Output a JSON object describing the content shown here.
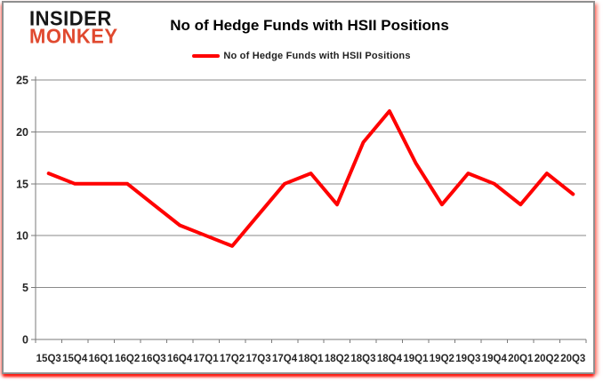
{
  "logo": {
    "line1": "INSIDER",
    "line2": "MONKEY"
  },
  "header": {
    "title": "No of Hedge Funds with HSII Positions"
  },
  "legend": {
    "label": "No of Hedge Funds with HSII Positions"
  },
  "colors": {
    "line": "#ff0000",
    "logo_red": "#e0492f",
    "grid": "#8a8a8a",
    "axis": "#7a7a7a",
    "text": "#262626",
    "frame_border": "#8f8f8f",
    "glow": "#ff1500"
  },
  "chart_data": {
    "type": "line",
    "title": "No of Hedge Funds with HSII Positions",
    "legend_entries": [
      "No of Hedge Funds with HSII Positions"
    ],
    "legend_position": "top",
    "grid": true,
    "xlabel": "",
    "ylabel": "",
    "ylim": [
      0,
      25
    ],
    "yticks": [
      0,
      5,
      10,
      15,
      20,
      25
    ],
    "categories": [
      "15Q3",
      "15Q4",
      "16Q1",
      "16Q2",
      "16Q3",
      "16Q4",
      "17Q1",
      "17Q2",
      "17Q3",
      "17Q4",
      "18Q1",
      "18Q2",
      "18Q3",
      "18Q4",
      "19Q1",
      "19Q2",
      "19Q3",
      "19Q4",
      "20Q1",
      "20Q2",
      "20Q3"
    ],
    "series": [
      {
        "name": "No of Hedge Funds with HSII Positions",
        "color": "#ff0000",
        "values": [
          16,
          15,
          15,
          15,
          13,
          11,
          10,
          9,
          12,
          15,
          16,
          13,
          19,
          22,
          17,
          13,
          16,
          15,
          13,
          16,
          14
        ]
      }
    ]
  }
}
